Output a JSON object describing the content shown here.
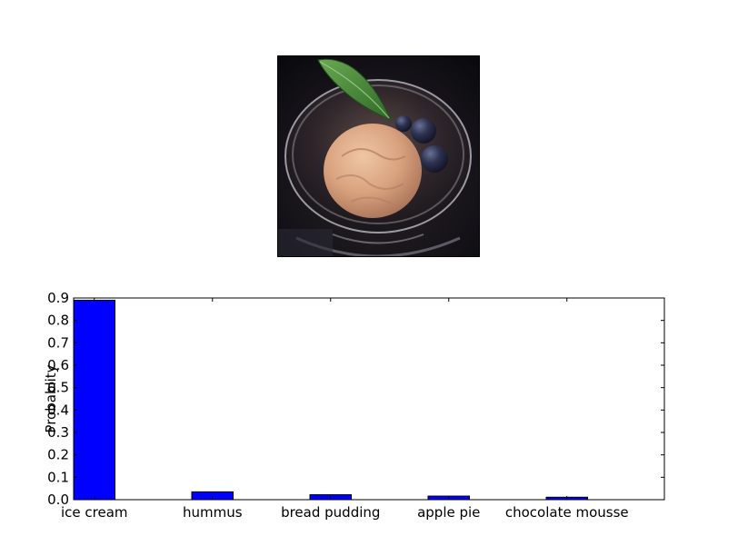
{
  "photo": {
    "icon": "ice-cream-photo",
    "colors": {
      "background": "#14141a",
      "ice_cream": "#d9a27e",
      "mint": "#4f8d3e",
      "blueberry": "#2e3350",
      "glass": "#b8b8c0"
    }
  },
  "chart_data": {
    "type": "bar",
    "categories": [
      "ice cream",
      "hummus",
      "bread pudding",
      "apple pie",
      "chocolate mousse"
    ],
    "values": [
      0.89,
      0.035,
      0.022,
      0.016,
      0.011
    ],
    "title": "",
    "xlabel": "",
    "ylabel": "Probablity",
    "ylim": [
      0,
      0.9
    ],
    "yticks": [
      0.0,
      0.1,
      0.2,
      0.3,
      0.4,
      0.5,
      0.6,
      0.7,
      0.8,
      0.9
    ],
    "bar_color": "#0000ff",
    "grid": false,
    "legend": "none"
  }
}
